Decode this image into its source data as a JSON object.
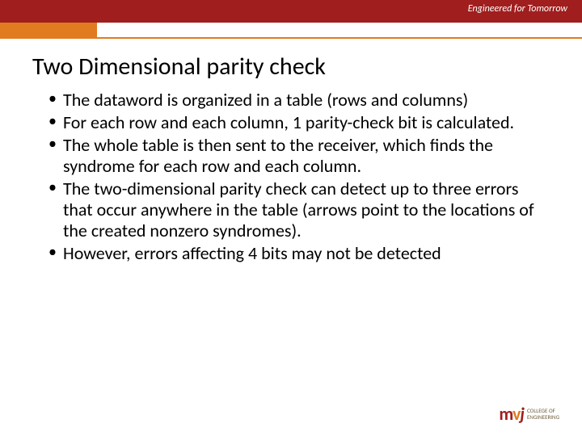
{
  "banner": {
    "tagline": "Engineered for Tomorrow",
    "bg_color": "#a01e1e",
    "accent_color": "#e07b1f"
  },
  "slide": {
    "title": "Two Dimensional parity check",
    "bullets": [
      "The dataword is organized in a table (rows and columns)",
      "For each row and each column, 1 parity-check bit is calculated.",
      "The whole table is then sent to the receiver, which finds the syndrome for each row and each column.",
      "The two-dimensional parity check can detect up to three errors that occur anywhere in the table (arrows point to the locations of the created nonzero syndromes).",
      "However, errors affecting 4 bits may not be detected"
    ]
  },
  "footer": {
    "logo_mark_m": "m",
    "logo_mark_v": "v",
    "logo_mark_j": "j",
    "logo_line1": "COLLEGE OF",
    "logo_line2": "ENGINEERING"
  }
}
